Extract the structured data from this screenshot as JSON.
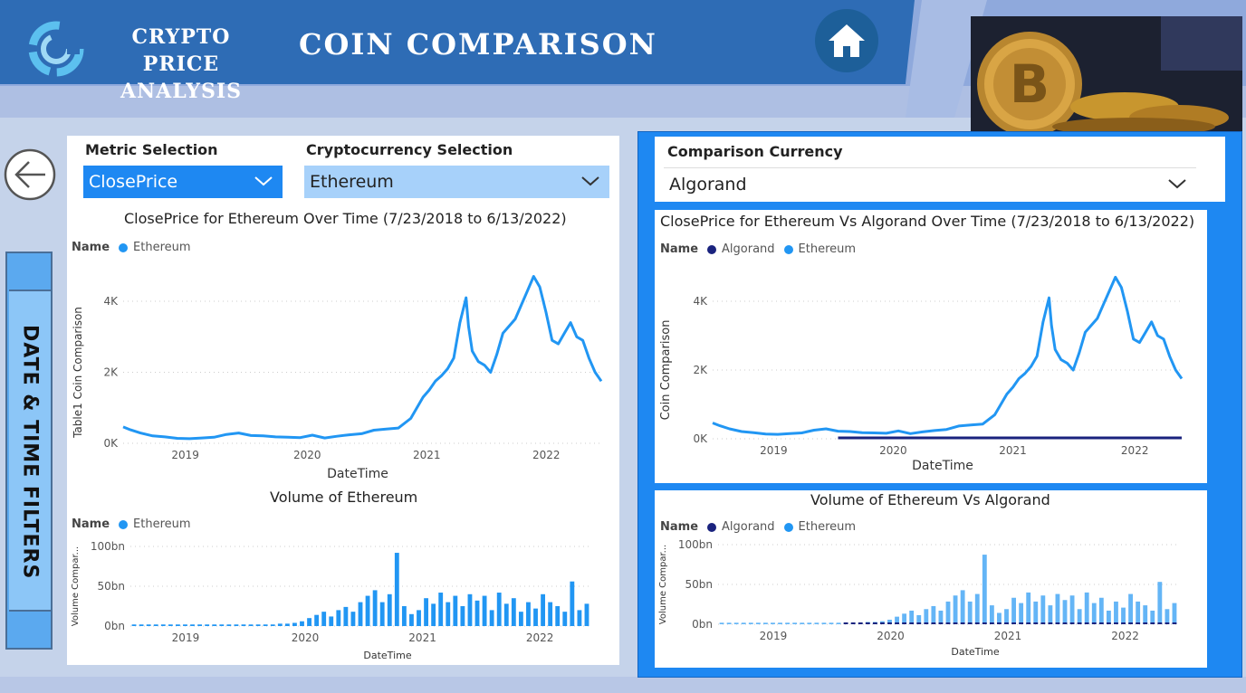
{
  "header": {
    "app_title_line1": "CRYPTO PRICE",
    "app_title_line2": "ANALYSIS",
    "page_title": "COIN  COMPARISON"
  },
  "side_tab": {
    "label": "DATE & TIME FILTERS"
  },
  "slicers": {
    "metric": {
      "label": "Metric Selection",
      "value": "ClosePrice"
    },
    "crypto": {
      "label": "Cryptocurrency Selection",
      "value": "Ethereum"
    },
    "comparison": {
      "label": "Comparison Currency",
      "value": "Algorand"
    }
  },
  "colors": {
    "ethereum": "#2196f3",
    "algorand": "#1a237e",
    "accent": "#1e88f2",
    "header": "#2e6cb5"
  },
  "icons": {
    "home": "home-icon",
    "back": "back-arrow-icon",
    "chevron": "chevron-down-icon"
  },
  "chart_data": [
    {
      "type": "line",
      "title": "ClosePrice for Ethereum Over Time (7/23/2018 to 6/13/2022)",
      "legend_title": "Name",
      "xlabel": "DateTime",
      "ylabel": "Table1 Coin Comparison",
      "yticks": [
        "0K",
        "2K",
        "4K"
      ],
      "xticks": [
        "2019",
        "2020",
        "2021",
        "2022"
      ],
      "ylim": [
        0,
        4800
      ],
      "x": [
        2018.56,
        2018.62,
        2018.7,
        2018.8,
        2018.9,
        2019.0,
        2019.1,
        2019.2,
        2019.3,
        2019.4,
        2019.5,
        2019.6,
        2019.7,
        2019.8,
        2019.9,
        2020.0,
        2020.1,
        2020.2,
        2020.3,
        2020.4,
        2020.5,
        2020.6,
        2020.7,
        2020.8,
        2020.9,
        2021.0,
        2021.05,
        2021.1,
        2021.15,
        2021.2,
        2021.25,
        2021.3,
        2021.35,
        2021.37,
        2021.4,
        2021.45,
        2021.5,
        2021.55,
        2021.6,
        2021.65,
        2021.7,
        2021.75,
        2021.8,
        2021.85,
        2021.9,
        2021.95,
        2022.0,
        2022.05,
        2022.1,
        2022.15,
        2022.2,
        2022.25,
        2022.3,
        2022.35,
        2022.4,
        2022.45
      ],
      "series": [
        {
          "name": "Ethereum",
          "values": [
            460,
            380,
            290,
            210,
            180,
            140,
            130,
            150,
            170,
            250,
            290,
            220,
            210,
            180,
            170,
            160,
            230,
            150,
            200,
            240,
            270,
            370,
            400,
            430,
            700,
            1300,
            1500,
            1750,
            1900,
            2100,
            2400,
            3400,
            4100,
            3300,
            2600,
            2300,
            2200,
            2000,
            2500,
            3100,
            3300,
            3500,
            3900,
            4300,
            4700,
            4400,
            3700,
            2900,
            2800,
            3100,
            3400,
            3000,
            2900,
            2400,
            2000,
            1750
          ]
        }
      ]
    },
    {
      "type": "bar",
      "title": "Volume of Ethereum",
      "legend_title": "Name",
      "xlabel": "DateTime",
      "ylabel": "Volume Compar...",
      "yticks": [
        "0bn",
        "50bn",
        "100bn"
      ],
      "xticks": [
        "2019",
        "2020",
        "2021",
        "2022"
      ],
      "ylim": [
        0,
        100
      ],
      "series": [
        {
          "name": "Ethereum",
          "values": [
            2,
            2,
            2,
            2,
            2,
            2,
            2,
            2,
            2,
            2,
            2,
            2,
            2,
            2,
            2,
            2,
            2,
            2,
            2,
            2,
            3,
            3,
            4,
            6,
            10,
            14,
            18,
            12,
            20,
            24,
            18,
            30,
            38,
            45,
            30,
            40,
            92,
            25,
            15,
            20,
            35,
            28,
            42,
            30,
            38,
            25,
            40,
            32,
            38,
            20,
            42,
            28,
            35,
            18,
            30,
            22,
            40,
            30,
            25,
            18,
            56,
            20,
            28
          ]
        }
      ]
    },
    {
      "type": "line",
      "title": "ClosePrice for Ethereum Vs Algorand Over Time (7/23/2018 to 6/13/2022)",
      "legend_title": "Name",
      "xlabel": "DateTime",
      "ylabel": "Coin Comparison",
      "yticks": [
        "0K",
        "2K",
        "4K"
      ],
      "xticks": [
        "2019",
        "2020",
        "2021",
        "2022"
      ],
      "ylim": [
        0,
        4800
      ],
      "series": [
        {
          "name": "Algorand",
          "values": [
            1,
            1,
            1
          ]
        },
        {
          "name": "Ethereum",
          "values": [
            460,
            4700,
            1750
          ]
        }
      ]
    },
    {
      "type": "bar",
      "title": "Volume of Ethereum Vs Algorand",
      "legend_title": "Name",
      "xlabel": "DateTime",
      "ylabel": "Volume Compar...",
      "yticks": [
        "0bn",
        "50bn",
        "100bn"
      ],
      "xticks": [
        "2019",
        "2020",
        "2021",
        "2022"
      ],
      "ylim": [
        0,
        100
      ],
      "series": [
        {
          "name": "Algorand",
          "values": [
            0.5
          ]
        },
        {
          "name": "Ethereum",
          "values": [
            92
          ]
        }
      ]
    }
  ]
}
